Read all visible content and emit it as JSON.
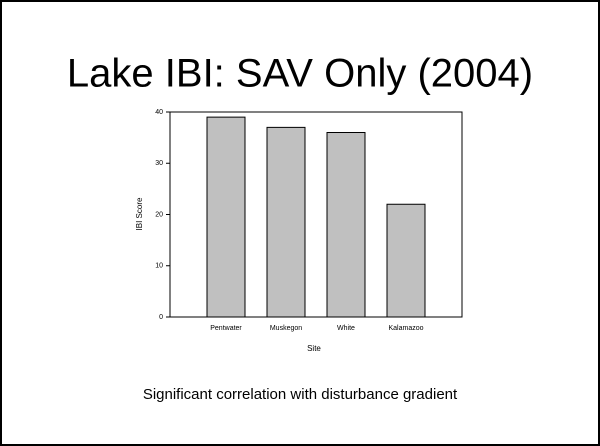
{
  "chart_data": {
    "type": "bar",
    "title": "Lake IBI: SAV Only (2004)",
    "x_label": "Site",
    "y_label": "IBI Score",
    "caption": "Significant correlation with disturbance gradient",
    "categories": [
      "Pentwater",
      "Muskegon",
      "White",
      "Kalamazoo"
    ],
    "values": [
      39,
      37,
      36,
      22
    ],
    "color": "#c0c0c0",
    "ylim": [
      0,
      40
    ],
    "yticks": [
      0,
      10,
      20,
      30,
      40
    ]
  }
}
